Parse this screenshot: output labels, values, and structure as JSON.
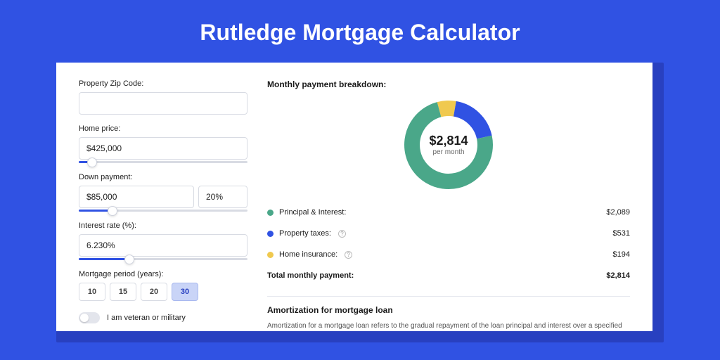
{
  "title": "Rutledge Mortgage Calculator",
  "colors": {
    "page_bg": "#3052e3",
    "frame_shadow": "#2840c0",
    "card_bg": "#ffffff",
    "input_border": "#d8dbe3",
    "slider_fill": "#3052e3",
    "period_active_bg": "#c9d4f7"
  },
  "form": {
    "zip": {
      "label": "Property Zip Code:",
      "value": ""
    },
    "price": {
      "label": "Home price:",
      "value": "$425,000",
      "slider_pct": 8
    },
    "down": {
      "label": "Down payment:",
      "value": "$85,000",
      "pct_value": "20%",
      "slider_pct": 20
    },
    "rate": {
      "label": "Interest rate (%):",
      "value": "6.230%",
      "slider_pct": 30
    },
    "period": {
      "label": "Mortgage period (years):",
      "options": [
        "10",
        "15",
        "20",
        "30"
      ],
      "selected": "30"
    },
    "veteran": {
      "label": "I am veteran or military",
      "on": false
    }
  },
  "breakdown": {
    "title": "Monthly payment breakdown:",
    "center_value": "$2,814",
    "center_label": "per month",
    "donut": {
      "segments": [
        {
          "key": "principal_interest",
          "value": 2089,
          "color": "#4aa789",
          "pct": 74.2
        },
        {
          "key": "property_taxes",
          "value": 531,
          "color": "#3052e3",
          "pct": 18.9
        },
        {
          "key": "home_insurance",
          "value": 194,
          "color": "#f0c94f",
          "pct": 6.9
        }
      ],
      "thickness": 22,
      "radius": 52
    },
    "rows": [
      {
        "label": "Principal & Interest:",
        "value": "$2,089",
        "color": "#4aa789",
        "info": false
      },
      {
        "label": "Property taxes:",
        "value": "$531",
        "color": "#3052e3",
        "info": true
      },
      {
        "label": "Home insurance:",
        "value": "$194",
        "color": "#f0c94f",
        "info": true
      }
    ],
    "total": {
      "label": "Total monthly payment:",
      "value": "$2,814"
    }
  },
  "amortization": {
    "title": "Amortization for mortgage loan",
    "text": "Amortization for a mortgage loan refers to the gradual repayment of the loan principal and interest over a specified"
  }
}
